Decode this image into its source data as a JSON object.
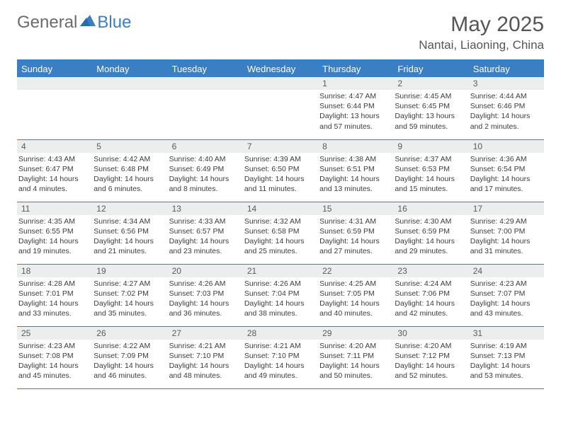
{
  "brand": {
    "text_gray": "General",
    "text_blue": "Blue"
  },
  "header": {
    "month_title": "May 2025",
    "location": "Nantai, Liaoning, China"
  },
  "colors": {
    "accent": "#3a7fc4",
    "header_text": "#ffffff",
    "daynum_bg": "#eceded",
    "body_text": "#3c3c3c",
    "title_text": "#565656",
    "logo_gray": "#6b6b6b"
  },
  "weekdays": [
    "Sunday",
    "Monday",
    "Tuesday",
    "Wednesday",
    "Thursday",
    "Friday",
    "Saturday"
  ],
  "weeks": [
    [
      {
        "n": "",
        "sr": "",
        "ss": "",
        "dl": ""
      },
      {
        "n": "",
        "sr": "",
        "ss": "",
        "dl": ""
      },
      {
        "n": "",
        "sr": "",
        "ss": "",
        "dl": ""
      },
      {
        "n": "",
        "sr": "",
        "ss": "",
        "dl": ""
      },
      {
        "n": "1",
        "sr": "4:47 AM",
        "ss": "6:44 PM",
        "dl": "13 hours and 57 minutes."
      },
      {
        "n": "2",
        "sr": "4:45 AM",
        "ss": "6:45 PM",
        "dl": "13 hours and 59 minutes."
      },
      {
        "n": "3",
        "sr": "4:44 AM",
        "ss": "6:46 PM",
        "dl": "14 hours and 2 minutes."
      }
    ],
    [
      {
        "n": "4",
        "sr": "4:43 AM",
        "ss": "6:47 PM",
        "dl": "14 hours and 4 minutes."
      },
      {
        "n": "5",
        "sr": "4:42 AM",
        "ss": "6:48 PM",
        "dl": "14 hours and 6 minutes."
      },
      {
        "n": "6",
        "sr": "4:40 AM",
        "ss": "6:49 PM",
        "dl": "14 hours and 8 minutes."
      },
      {
        "n": "7",
        "sr": "4:39 AM",
        "ss": "6:50 PM",
        "dl": "14 hours and 11 minutes."
      },
      {
        "n": "8",
        "sr": "4:38 AM",
        "ss": "6:51 PM",
        "dl": "14 hours and 13 minutes."
      },
      {
        "n": "9",
        "sr": "4:37 AM",
        "ss": "6:53 PM",
        "dl": "14 hours and 15 minutes."
      },
      {
        "n": "10",
        "sr": "4:36 AM",
        "ss": "6:54 PM",
        "dl": "14 hours and 17 minutes."
      }
    ],
    [
      {
        "n": "11",
        "sr": "4:35 AM",
        "ss": "6:55 PM",
        "dl": "14 hours and 19 minutes."
      },
      {
        "n": "12",
        "sr": "4:34 AM",
        "ss": "6:56 PM",
        "dl": "14 hours and 21 minutes."
      },
      {
        "n": "13",
        "sr": "4:33 AM",
        "ss": "6:57 PM",
        "dl": "14 hours and 23 minutes."
      },
      {
        "n": "14",
        "sr": "4:32 AM",
        "ss": "6:58 PM",
        "dl": "14 hours and 25 minutes."
      },
      {
        "n": "15",
        "sr": "4:31 AM",
        "ss": "6:59 PM",
        "dl": "14 hours and 27 minutes."
      },
      {
        "n": "16",
        "sr": "4:30 AM",
        "ss": "6:59 PM",
        "dl": "14 hours and 29 minutes."
      },
      {
        "n": "17",
        "sr": "4:29 AM",
        "ss": "7:00 PM",
        "dl": "14 hours and 31 minutes."
      }
    ],
    [
      {
        "n": "18",
        "sr": "4:28 AM",
        "ss": "7:01 PM",
        "dl": "14 hours and 33 minutes."
      },
      {
        "n": "19",
        "sr": "4:27 AM",
        "ss": "7:02 PM",
        "dl": "14 hours and 35 minutes."
      },
      {
        "n": "20",
        "sr": "4:26 AM",
        "ss": "7:03 PM",
        "dl": "14 hours and 36 minutes."
      },
      {
        "n": "21",
        "sr": "4:26 AM",
        "ss": "7:04 PM",
        "dl": "14 hours and 38 minutes."
      },
      {
        "n": "22",
        "sr": "4:25 AM",
        "ss": "7:05 PM",
        "dl": "14 hours and 40 minutes."
      },
      {
        "n": "23",
        "sr": "4:24 AM",
        "ss": "7:06 PM",
        "dl": "14 hours and 42 minutes."
      },
      {
        "n": "24",
        "sr": "4:23 AM",
        "ss": "7:07 PM",
        "dl": "14 hours and 43 minutes."
      }
    ],
    [
      {
        "n": "25",
        "sr": "4:23 AM",
        "ss": "7:08 PM",
        "dl": "14 hours and 45 minutes."
      },
      {
        "n": "26",
        "sr": "4:22 AM",
        "ss": "7:09 PM",
        "dl": "14 hours and 46 minutes."
      },
      {
        "n": "27",
        "sr": "4:21 AM",
        "ss": "7:10 PM",
        "dl": "14 hours and 48 minutes."
      },
      {
        "n": "28",
        "sr": "4:21 AM",
        "ss": "7:10 PM",
        "dl": "14 hours and 49 minutes."
      },
      {
        "n": "29",
        "sr": "4:20 AM",
        "ss": "7:11 PM",
        "dl": "14 hours and 50 minutes."
      },
      {
        "n": "30",
        "sr": "4:20 AM",
        "ss": "7:12 PM",
        "dl": "14 hours and 52 minutes."
      },
      {
        "n": "31",
        "sr": "4:19 AM",
        "ss": "7:13 PM",
        "dl": "14 hours and 53 minutes."
      }
    ]
  ],
  "labels": {
    "sunrise": "Sunrise: ",
    "sunset": "Sunset: ",
    "daylight": "Daylight: "
  }
}
